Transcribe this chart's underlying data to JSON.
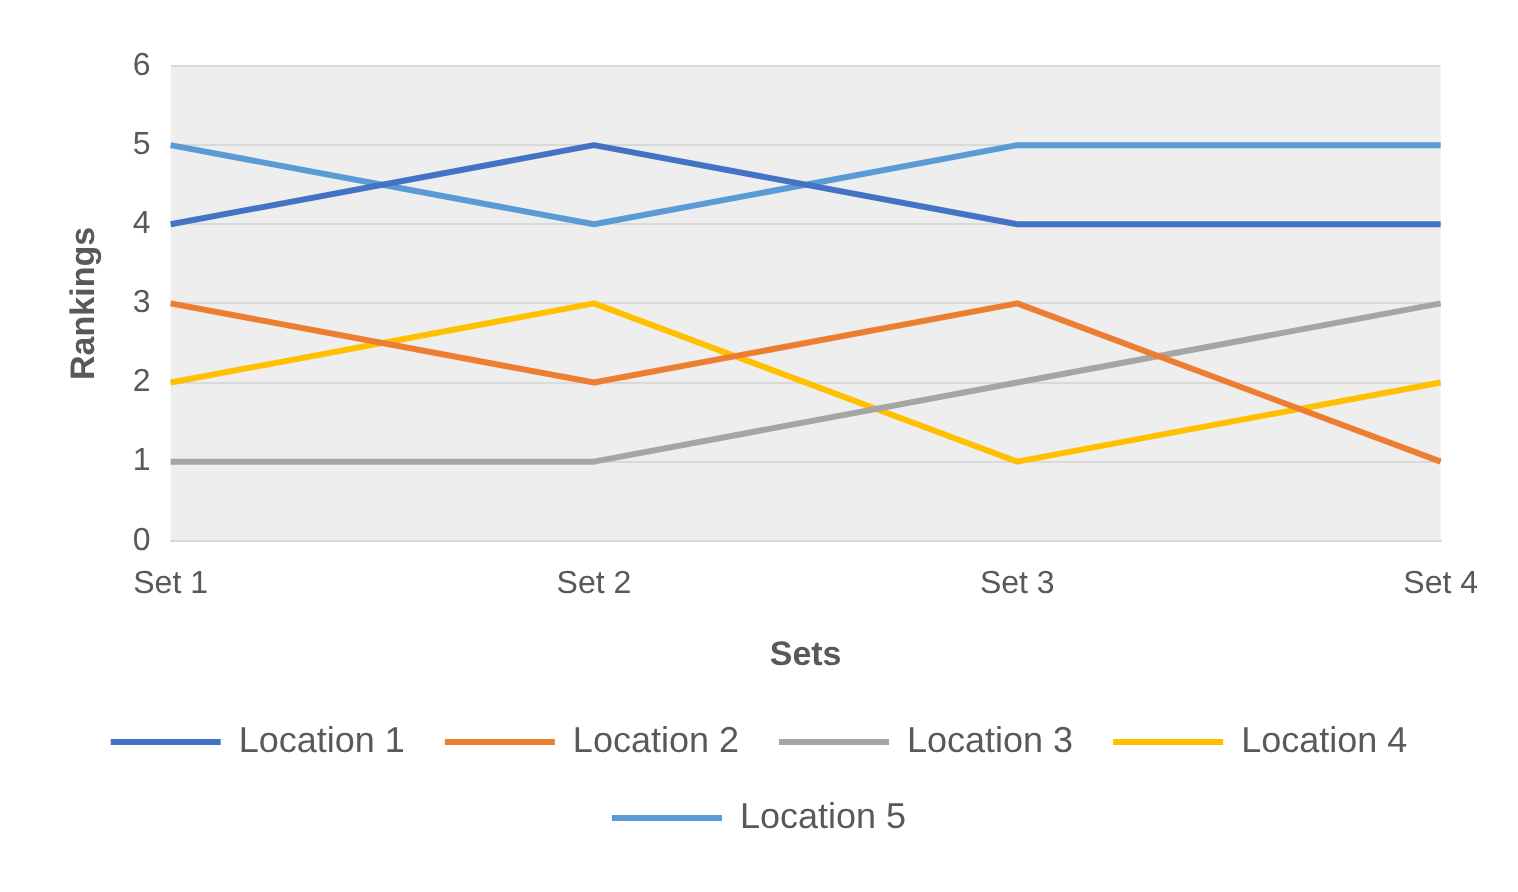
{
  "chart_data": {
    "type": "line",
    "xlabel": "Sets",
    "ylabel": "Rankings",
    "categories": [
      "Set 1",
      "Set 2",
      "Set 3",
      "Set 4"
    ],
    "series": [
      {
        "name": "Location 1",
        "color": "#4472c4",
        "values": [
          4,
          5,
          4,
          4
        ]
      },
      {
        "name": "Location 2",
        "color": "#ed7d31",
        "values": [
          3,
          2,
          3,
          1
        ]
      },
      {
        "name": "Location 3",
        "color": "#a5a5a5",
        "values": [
          1,
          1,
          2,
          3
        ]
      },
      {
        "name": "Location 4",
        "color": "#ffc000",
        "values": [
          2,
          3,
          1,
          2
        ]
      },
      {
        "name": "Location 5",
        "color": "#5b9bd5",
        "values": [
          5,
          4,
          5,
          5
        ]
      }
    ],
    "ylim": [
      0,
      6
    ],
    "yticks": [
      0,
      1,
      2,
      3,
      4,
      5,
      6
    ],
    "grid": "y",
    "legend": "bottom",
    "marker": "none",
    "line_style": "solid"
  }
}
